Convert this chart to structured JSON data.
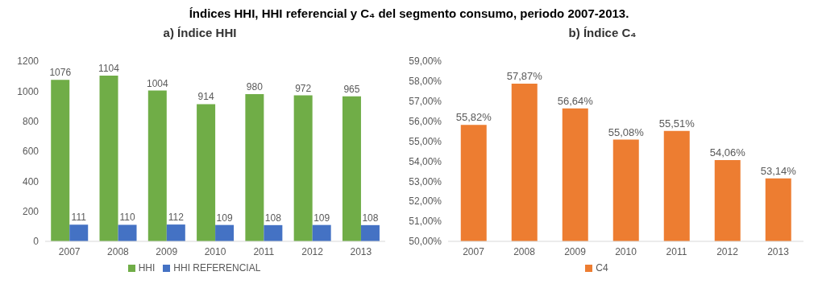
{
  "chart_data": [
    {
      "type": "bar",
      "title": "Índices HHI, HHI referencial y C₄ del segmento consumo, periodo 2007-2013.",
      "subtitle": "a) Índice HHI",
      "categories": [
        "2007",
        "2008",
        "2009",
        "2010",
        "2011",
        "2012",
        "2013"
      ],
      "series": [
        {
          "name": "HHI",
          "color": "#70ad47",
          "values": [
            1076,
            1104,
            1004,
            914,
            980,
            972,
            965
          ]
        },
        {
          "name": "HHI REFERENCIAL",
          "color": "#4472c4",
          "values": [
            111,
            110,
            112,
            109,
            108,
            109,
            108
          ]
        }
      ],
      "ylim": [
        0,
        1200
      ],
      "yticks": [
        0,
        200,
        400,
        600,
        800,
        1000,
        1200
      ],
      "data_labels": true,
      "legend": "bottom"
    },
    {
      "type": "bar",
      "title": "b) Índice C₄",
      "categories": [
        "2007",
        "2008",
        "2009",
        "2010",
        "2011",
        "2012",
        "2013"
      ],
      "series": [
        {
          "name": "C4",
          "color": "#ed7d31",
          "values": [
            55.82,
            57.87,
            56.64,
            55.08,
            55.51,
            54.06,
            53.14
          ],
          "value_labels": [
            "55,82%",
            "57,87%",
            "56,64%",
            "55,08%",
            "55,51%",
            "54,06%",
            "53,14%"
          ]
        }
      ],
      "ylim": [
        50,
        59
      ],
      "yticks": [
        {
          "value": 50,
          "label": "50,00%"
        },
        {
          "value": 51,
          "label": "51,00%"
        },
        {
          "value": 52,
          "label": "52,00%"
        },
        {
          "value": 53,
          "label": "53,00%"
        },
        {
          "value": 54,
          "label": "54,00%"
        },
        {
          "value": 55,
          "label": "55,00%"
        },
        {
          "value": 56,
          "label": "56,00%"
        },
        {
          "value": 57,
          "label": "57,00%"
        },
        {
          "value": 58,
          "label": "58,00%"
        },
        {
          "value": 59,
          "label": "59,00%"
        }
      ],
      "legend": "bottom"
    }
  ]
}
